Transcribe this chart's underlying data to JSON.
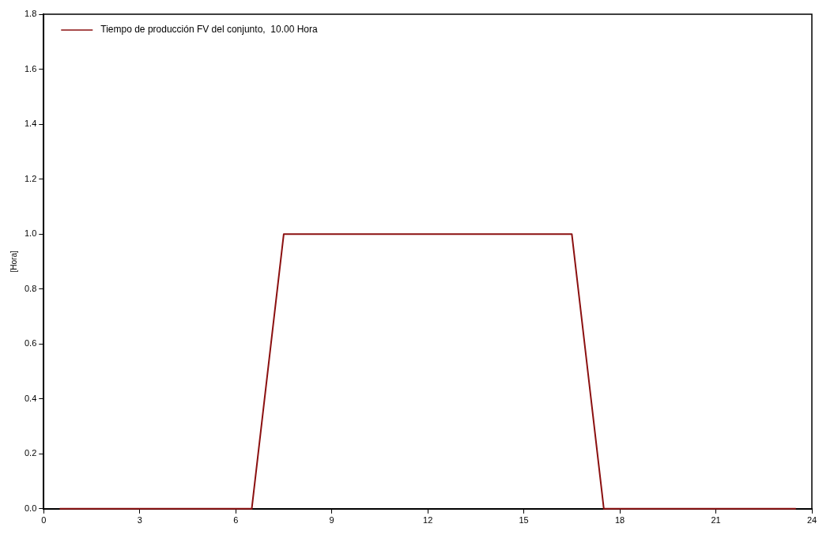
{
  "chart_data": {
    "type": "line",
    "ylabel": "[Hora]",
    "x": [
      0.5,
      1.5,
      2.5,
      3.5,
      4.5,
      5.5,
      6.5,
      7.5,
      8.5,
      9.5,
      10.5,
      11.5,
      12.5,
      13.5,
      14.5,
      15.5,
      16.5,
      17.5,
      18.5,
      19.5,
      20.5,
      21.5,
      22.5,
      23.5
    ],
    "series": [
      {
        "name": "Tiempo de producción FV del conjunto,  10.00 Hora",
        "color": "#8b1010",
        "values": [
          0,
          0,
          0,
          0,
          0,
          0,
          0,
          1,
          1,
          1,
          1,
          1,
          1,
          1,
          1,
          1,
          1,
          0,
          0,
          0,
          0,
          0,
          0,
          0
        ]
      }
    ],
    "xlim": [
      0,
      24
    ],
    "xticks": [
      0,
      3,
      6,
      9,
      12,
      15,
      18,
      21,
      24
    ],
    "ylim": [
      0,
      1.8
    ],
    "yticks": [
      {
        "value": 0,
        "label": "0.0"
      },
      {
        "value": 0.2,
        "label": "0.2"
      },
      {
        "value": 0.4,
        "label": "0.4"
      },
      {
        "value": 0.6,
        "label": "0.6"
      },
      {
        "value": 0.8,
        "label": "0.8"
      },
      {
        "value": 1,
        "label": "1.0"
      },
      {
        "value": 1.2,
        "label": "1.2"
      },
      {
        "value": 1.4,
        "label": "1.4"
      },
      {
        "value": 1.6,
        "label": "1.6"
      },
      {
        "value": 1.8,
        "label": "1.8"
      }
    ],
    "grid": false,
    "legend": "top left",
    "marker": "none",
    "line_style": "solid"
  }
}
